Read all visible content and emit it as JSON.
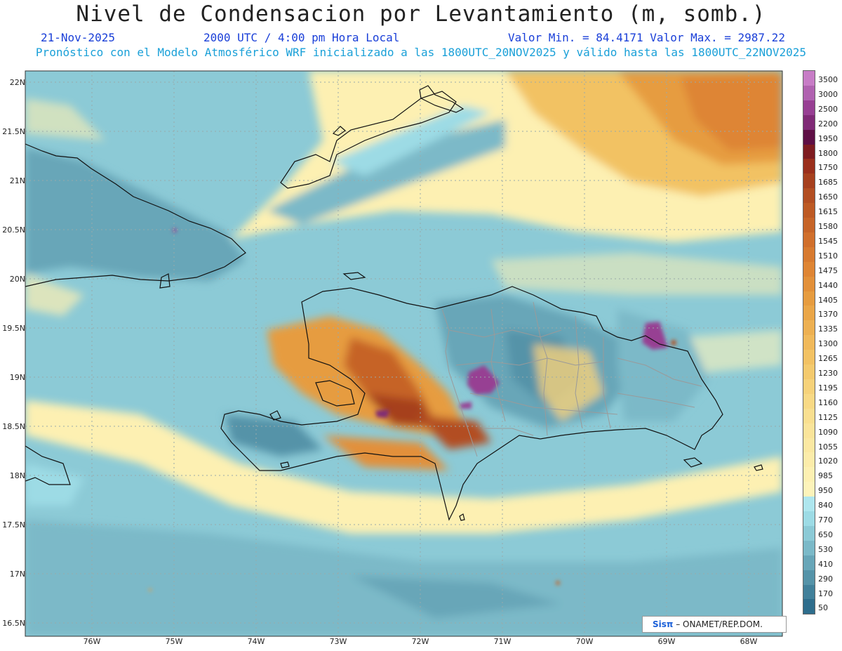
{
  "header": {
    "title": "Nivel de Condensacion por Levantamiento (m, somb.)",
    "date": "21-Nov-2025",
    "time": "2000 UTC / 4:00 pm Hora Local",
    "min_max": "Valor Min. = 84.4171  Valor Max. = 2987.22",
    "subtitle": "Pronóstico con el Modelo Atmosférico WRF inicializado a las 1800UTC_20NOV2025 y válido hasta las  1800UTC_22NOV2025"
  },
  "map": {
    "lat_labels": [
      "22N",
      "21.5N",
      "21N",
      "20.5N",
      "20N",
      "19.5N",
      "19N",
      "18.5N",
      "18N",
      "17.5N",
      "17N",
      "16.5N"
    ],
    "lon_labels": [
      "76W",
      "75W",
      "74W",
      "73W",
      "72W",
      "71W",
      "70W",
      "69W",
      "68W"
    ],
    "extent": {
      "lon": [
        -76.6,
        -67.6
      ],
      "lat": [
        16.4,
        22.1
      ]
    }
  },
  "colorbar": {
    "labels": [
      "3500",
      "3000",
      "2500",
      "2200",
      "1950",
      "1800",
      "1750",
      "1685",
      "1650",
      "1615",
      "1580",
      "1545",
      "1510",
      "1475",
      "1440",
      "1405",
      "1370",
      "1335",
      "1300",
      "1265",
      "1230",
      "1195",
      "1160",
      "1125",
      "1090",
      "1055",
      "1020",
      "985",
      "950",
      "840",
      "770",
      "650",
      "530",
      "410",
      "290",
      "170",
      "50"
    ],
    "colors": {
      "3500": "#c77cc6",
      "3000": "#b062b0",
      "2500": "#973f93",
      "2200": "#7f2a76",
      "1950": "#5e0f45",
      "1800": "#7e1c20",
      "1750": "#9a2f1c",
      "1685": "#a6401e",
      "1650": "#b24e22",
      "1615": "#bd5a24",
      "1580": "#c66428",
      "1545": "#d06f2c",
      "1510": "#d77a30",
      "1475": "#de8534",
      "1440": "#e2903a",
      "1405": "#e69c40",
      "1370": "#eaa648",
      "1335": "#edb052",
      "1300": "#f0b95b",
      "1265": "#f2c264",
      "1230": "#f4ca6e",
      "1195": "#f6d27a",
      "1160": "#f8d985",
      "1125": "#f9df90",
      "1090": "#faE49a",
      "1055": "#fbe8a2",
      "1020": "#fcecaa",
      "985": "#fdf0b2",
      "950": "#fdf3ba",
      "840": "#aee6ee",
      "770": "#9ddbe5",
      "650": "#8ccad6",
      "530": "#7bb9c8",
      "410": "#68a6b8",
      "290": "#5593a8",
      "170": "#41809a",
      "50": "#2e6d8c"
    }
  },
  "footer": {
    "logo_prefix": "Sisπ",
    "logo_text": " – ONAMET/REP.DOM."
  }
}
